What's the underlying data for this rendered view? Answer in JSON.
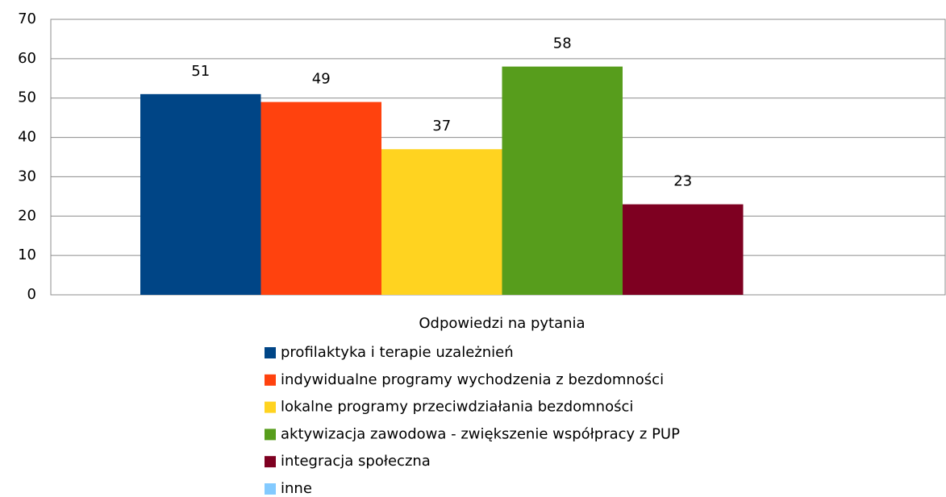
{
  "chart_data": {
    "type": "bar",
    "categories": [
      "Odpowiedzi na pytania"
    ],
    "series": [
      {
        "name": "profilaktyka i terapie uzależnień",
        "color": "#004586",
        "values": [
          51
        ]
      },
      {
        "name": "indywidualne programy wychodzenia z bezdomności",
        "color": "#ff420e",
        "values": [
          49
        ]
      },
      {
        "name": "lokalne programy przeciwdziałania bezdomności",
        "color": "#ffd320",
        "values": [
          37
        ]
      },
      {
        "name": "aktywizacja zawodowa - zwiększenie współpracy z  PUP",
        "color": "#579d1c",
        "values": [
          58
        ]
      },
      {
        "name": "integracja społeczna",
        "color": "#7e0021",
        "values": [
          23
        ]
      },
      {
        "name": "inne",
        "color": "#83caff",
        "values": [
          null
        ]
      }
    ],
    "ylim": [
      0,
      70
    ],
    "yticks": [
      0,
      10,
      20,
      30,
      40,
      50,
      60,
      70
    ],
    "grid": true,
    "legend": "bottom"
  }
}
